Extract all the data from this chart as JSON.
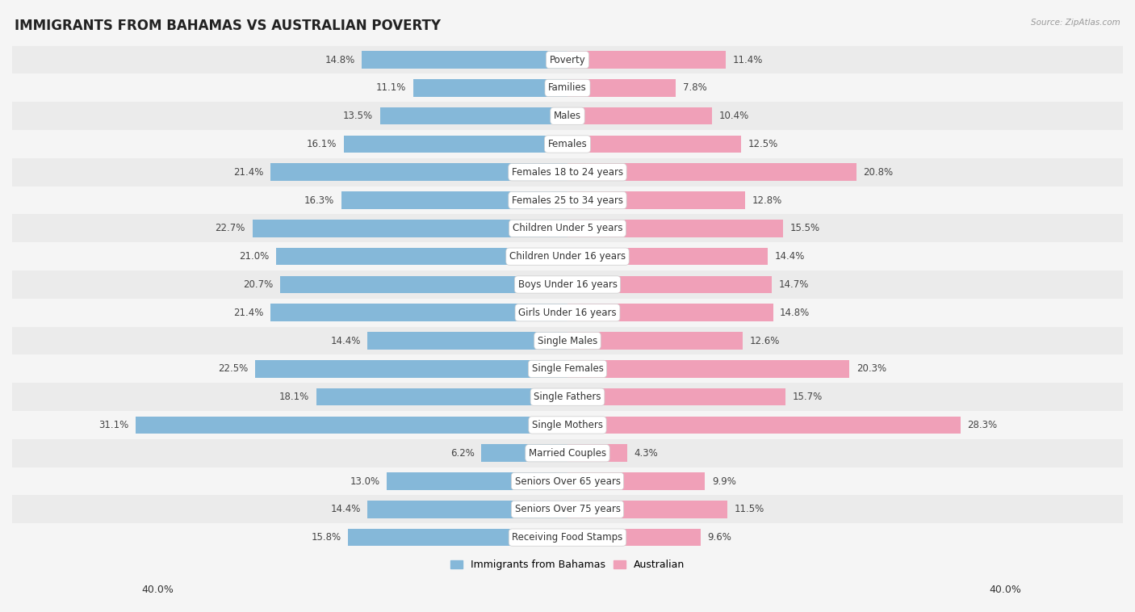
{
  "title": "IMMIGRANTS FROM BAHAMAS VS AUSTRALIAN POVERTY",
  "source": "Source: ZipAtlas.com",
  "categories": [
    "Poverty",
    "Families",
    "Males",
    "Females",
    "Females 18 to 24 years",
    "Females 25 to 34 years",
    "Children Under 5 years",
    "Children Under 16 years",
    "Boys Under 16 years",
    "Girls Under 16 years",
    "Single Males",
    "Single Females",
    "Single Fathers",
    "Single Mothers",
    "Married Couples",
    "Seniors Over 65 years",
    "Seniors Over 75 years",
    "Receiving Food Stamps"
  ],
  "bahamas_values": [
    14.8,
    11.1,
    13.5,
    16.1,
    21.4,
    16.3,
    22.7,
    21.0,
    20.7,
    21.4,
    14.4,
    22.5,
    18.1,
    31.1,
    6.2,
    13.0,
    14.4,
    15.8
  ],
  "australian_values": [
    11.4,
    7.8,
    10.4,
    12.5,
    20.8,
    12.8,
    15.5,
    14.4,
    14.7,
    14.8,
    12.6,
    20.3,
    15.7,
    28.3,
    4.3,
    9.9,
    11.5,
    9.6
  ],
  "bahamas_color": "#85b8d9",
  "australian_color": "#f0a0b8",
  "background_color": "#f5f5f5",
  "row_even_color": "#ebebeb",
  "row_odd_color": "#f5f5f5",
  "bar_height": 0.62,
  "xlim": 40.0,
  "legend_bahamas": "Immigrants from Bahamas",
  "legend_australian": "Australian",
  "title_fontsize": 12,
  "cat_fontsize": 8.5,
  "value_fontsize": 8.5
}
